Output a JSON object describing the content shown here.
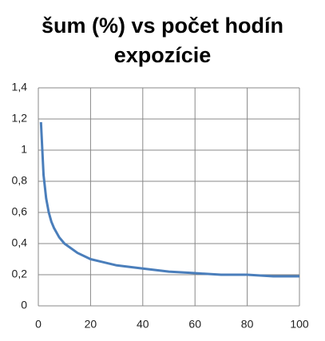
{
  "chart_data": {
    "type": "line",
    "title": "šum (%) vs počet hodín expozície",
    "x": [
      1,
      2,
      3,
      4,
      5,
      6,
      8,
      10,
      15,
      20,
      30,
      40,
      50,
      60,
      70,
      80,
      90,
      100
    ],
    "series": [
      {
        "color": "#4a7ebb",
        "values": [
          1.18,
          0.84,
          0.69,
          0.6,
          0.54,
          0.5,
          0.44,
          0.4,
          0.34,
          0.3,
          0.26,
          0.24,
          0.22,
          0.21,
          0.2,
          0.2,
          0.19,
          0.19
        ]
      }
    ],
    "xlim": [
      0,
      100
    ],
    "xticks": [
      0,
      20,
      40,
      60,
      80,
      100
    ],
    "ylim": [
      0,
      1.4
    ],
    "yticks": [
      0,
      {
        "value": 0.2,
        "label": "0,2"
      },
      {
        "value": 0.4,
        "label": "0,4"
      },
      {
        "value": 0.6,
        "label": "0,6"
      },
      {
        "value": 0.8,
        "label": "0,8"
      },
      1,
      {
        "value": 1.2,
        "label": "1,2"
      },
      {
        "value": 1.4,
        "label": "1,4"
      }
    ],
    "grid": true
  }
}
